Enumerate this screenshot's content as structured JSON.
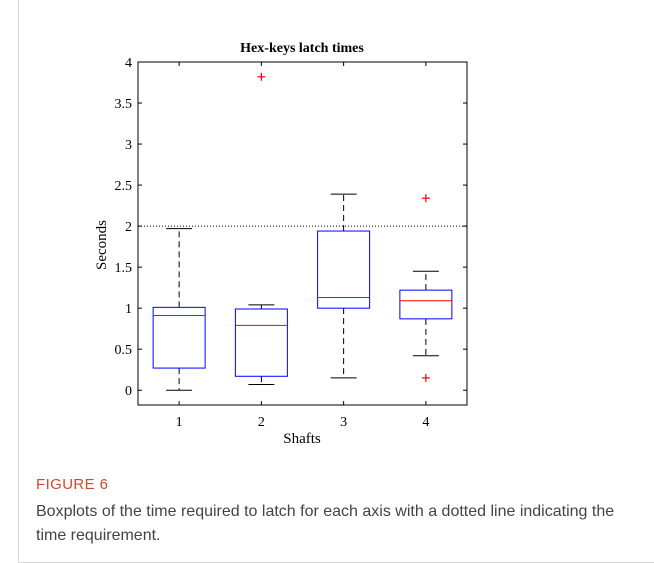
{
  "figure": {
    "label": "FIGURE 6",
    "caption": "Boxplots of the time required to latch for each axis with a dotted line indicating the time requirement."
  },
  "chart_data": {
    "type": "boxplot",
    "title": "Hex-keys latch times",
    "xlabel": "Shafts",
    "ylabel": "Seconds",
    "categories": [
      "1",
      "2",
      "3",
      "4"
    ],
    "ylim": [
      -0.18,
      4.0
    ],
    "yticks": [
      0,
      0.5,
      1,
      1.5,
      2,
      2.5,
      3,
      3.5,
      4
    ],
    "ytick_labels": [
      "0",
      "0.5",
      "1",
      "1.5",
      "2",
      "2.5",
      "3",
      "3.5",
      "4"
    ],
    "threshold": 2,
    "grid": false,
    "boxes": [
      {
        "category": "1",
        "whisker_low": 0.0,
        "q1": 0.27,
        "median": 0.91,
        "q3": 1.01,
        "whisker_high": 1.97,
        "outliers": []
      },
      {
        "category": "2",
        "whisker_low": 0.07,
        "q1": 0.17,
        "median": 0.79,
        "q3": 0.99,
        "whisker_high": 1.04,
        "outliers": [
          3.82
        ]
      },
      {
        "category": "3",
        "whisker_low": 0.15,
        "q1": 1.0,
        "median": 1.13,
        "q3": 1.94,
        "whisker_high": 2.39,
        "outliers": []
      },
      {
        "category": "4",
        "whisker_low": 0.42,
        "q1": 0.87,
        "median": 1.09,
        "q3": 1.22,
        "whisker_high": 1.45,
        "outliers": [
          2.34,
          0.15
        ]
      }
    ],
    "colors": {
      "box": "#0000ff",
      "median": "#ff0000",
      "outlier": "#ff0000",
      "whisker": "#000000"
    }
  }
}
